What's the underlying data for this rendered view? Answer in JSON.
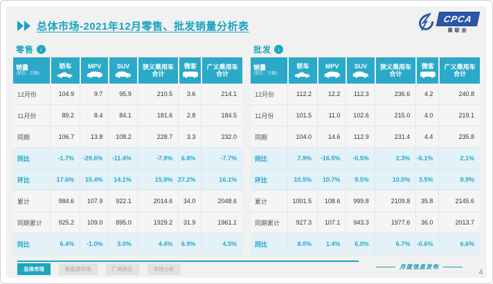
{
  "slide": {
    "title": "总体市场-2021年12月零售、批发销量分析表",
    "logo": {
      "text": "CPCA",
      "subtitle": "乘联会"
    },
    "footer_note": "月度信息发布",
    "page_number": "4",
    "watermark": "CPCA"
  },
  "tabs": [
    {
      "label": "总体市场",
      "active": true
    },
    {
      "label": "新能源市场",
      "active": false
    },
    {
      "label": "厂商排名",
      "active": false
    },
    {
      "label": "市场分析",
      "active": false
    }
  ],
  "colors": {
    "accent_teal": "#1ba6c2",
    "header_bg": "#2aa9c8",
    "highlight_row_bg": "#e3f1f8",
    "logo_blue": "#2b57a7"
  },
  "tables": [
    {
      "section_label": "零售",
      "measure_label": "销量",
      "unit_note": "(单位：万辆)",
      "columns": [
        {
          "label": "轿车",
          "label2": "",
          "icon": "sedan-icon"
        },
        {
          "label": "MPV",
          "label2": "",
          "icon": "mpv-icon"
        },
        {
          "label": "SUV",
          "label2": "",
          "icon": "suv-icon"
        },
        {
          "label": "狭义乘用车",
          "label2": "合计",
          "icon": ""
        },
        {
          "label": "微客",
          "label2": "",
          "icon": "van-icon"
        },
        {
          "label": "广义乘用车",
          "label2": "合计",
          "icon": ""
        }
      ],
      "rows": [
        {
          "label": "12月份",
          "highlight": false,
          "values": [
            "104.9",
            "9.7",
            "95.9",
            "210.5",
            "3.6",
            "214.1"
          ]
        },
        {
          "label": "11月份",
          "highlight": false,
          "values": [
            "89.2",
            "8.4",
            "84.1",
            "181.6",
            "2.8",
            "184.5"
          ]
        },
        {
          "label": "同期",
          "highlight": false,
          "values": [
            "106.7",
            "13.8",
            "108.2",
            "228.7",
            "3.3",
            "232.0"
          ]
        },
        {
          "label": "同比",
          "highlight": true,
          "values": [
            "-1.7%",
            "-29.6%",
            "-11.4%",
            "-7.9%",
            "6.8%",
            "-7.7%"
          ]
        },
        {
          "label": "环比",
          "highlight": true,
          "values": [
            "17.6%",
            "15.4%",
            "14.1%",
            "15.9%",
            "27.2%",
            "16.1%"
          ]
        },
        {
          "label": "累计",
          "highlight": false,
          "values": [
            "984.6",
            "107.9",
            "922.1",
            "2014.6",
            "34.0",
            "2048.6"
          ]
        },
        {
          "label": "同期累计",
          "highlight": false,
          "values": [
            "925.2",
            "109.0",
            "895.0",
            "1929.2",
            "31.9",
            "1961.1"
          ]
        },
        {
          "label": "同比",
          "highlight": true,
          "values": [
            "6.4%",
            "-1.0%",
            "3.0%",
            "4.4%",
            "6.9%",
            "4.5%"
          ]
        }
      ]
    },
    {
      "section_label": "批发",
      "measure_label": "销量",
      "unit_note": "(单位：万辆)",
      "columns": [
        {
          "label": "轿车",
          "label2": "",
          "icon": "sedan-icon"
        },
        {
          "label": "MPV",
          "label2": "",
          "icon": "mpv-icon"
        },
        {
          "label": "SUV",
          "label2": "",
          "icon": "suv-icon"
        },
        {
          "label": "狭义乘用车",
          "label2": "合计",
          "icon": ""
        },
        {
          "label": "微客",
          "label2": "",
          "icon": "van-icon"
        },
        {
          "label": "广义乘用车",
          "label2": "合计",
          "icon": ""
        }
      ],
      "rows": [
        {
          "label": "12月份",
          "highlight": false,
          "values": [
            "112.2",
            "12.2",
            "112.3",
            "236.6",
            "4.2",
            "240.8"
          ]
        },
        {
          "label": "11月份",
          "highlight": false,
          "values": [
            "101.5",
            "11.0",
            "102.6",
            "215.0",
            "4.0",
            "219.1"
          ]
        },
        {
          "label": "同期",
          "highlight": false,
          "values": [
            "104.0",
            "14.6",
            "112.9",
            "231.4",
            "4.4",
            "235.8"
          ]
        },
        {
          "label": "同比",
          "highlight": true,
          "values": [
            "7.9%",
            "-16.5%",
            "-0.5%",
            "2.3%",
            "-6.1%",
            "2.1%"
          ]
        },
        {
          "label": "环比",
          "highlight": true,
          "values": [
            "10.5%",
            "10.7%",
            "9.5%",
            "10.0%",
            "3.5%",
            "9.9%"
          ]
        },
        {
          "label": "累计",
          "highlight": false,
          "values": [
            "1001.5",
            "108.6",
            "999.8",
            "2109.8",
            "35.8",
            "2145.6"
          ]
        },
        {
          "label": "同期累计",
          "highlight": false,
          "values": [
            "927.3",
            "107.1",
            "943.3",
            "1977.6",
            "36.0",
            "2013.7"
          ]
        },
        {
          "label": "同比",
          "highlight": true,
          "values": [
            "8.0%",
            "1.4%",
            "6.0%",
            "6.7%",
            "-0.6%",
            "6.6%"
          ]
        }
      ]
    }
  ]
}
